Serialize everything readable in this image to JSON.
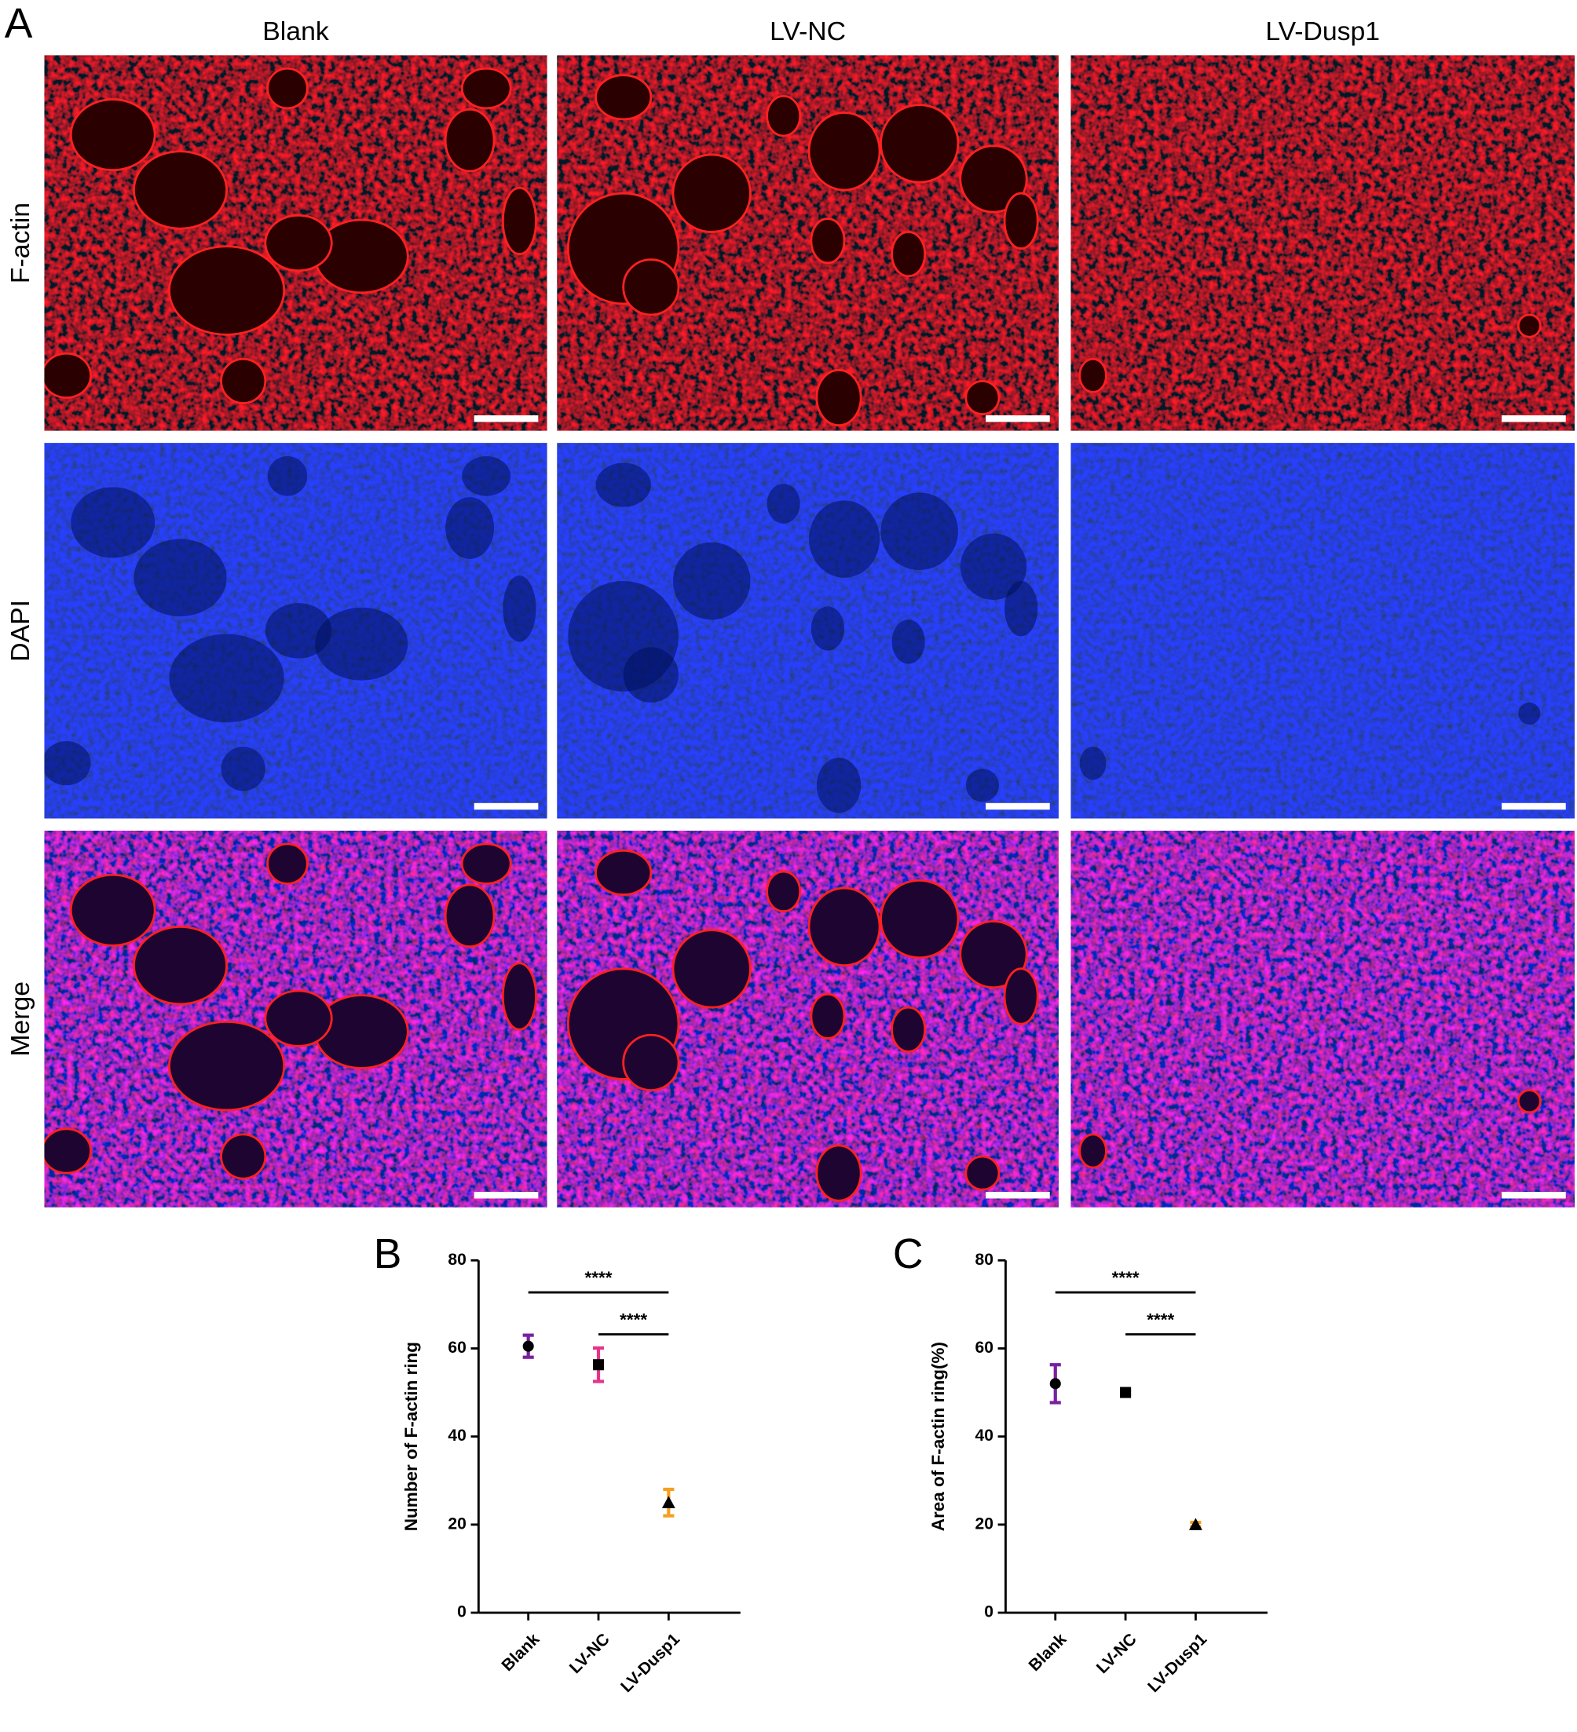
{
  "panel_labels": [
    "A",
    "B",
    "C"
  ],
  "column_titles": [
    "Blank",
    "LV-NC",
    "LV-Dusp1"
  ],
  "row_titles": [
    "F-actin",
    "DAPI",
    "Merge"
  ],
  "chart_data": [
    {
      "type": "dot",
      "ylabel": "Number of F-actin ring",
      "categories": [
        "Blank",
        "LV-NC",
        "LV-Dusp1"
      ],
      "values": [
        60.5,
        56.3,
        25
      ],
      "errors": [
        2.5,
        3.8,
        3
      ],
      "colors": [
        "#7b1fa2",
        "#e6348c",
        "#f5a020"
      ],
      "markers": [
        "circle",
        "square",
        "triangle"
      ],
      "ylim": [
        0,
        80
      ],
      "yticks": [
        0,
        20,
        40,
        60,
        80
      ],
      "annotations": [
        "****",
        "****"
      ]
    },
    {
      "type": "dot",
      "ylabel": "Area of F-actin ring(%)",
      "categories": [
        "Blank",
        "LV-NC",
        "LV-Dusp1"
      ],
      "values": [
        52,
        50,
        20
      ],
      "errors": [
        4.3,
        0.5,
        0.5
      ],
      "colors": [
        "#7b1fa2",
        "#e6348c",
        "#f5a020"
      ],
      "markers": [
        "circle",
        "square",
        "triangle"
      ],
      "ylim": [
        0,
        80
      ],
      "yticks": [
        0,
        20,
        40,
        60,
        80
      ],
      "annotations": [
        "****",
        "****"
      ]
    }
  ]
}
